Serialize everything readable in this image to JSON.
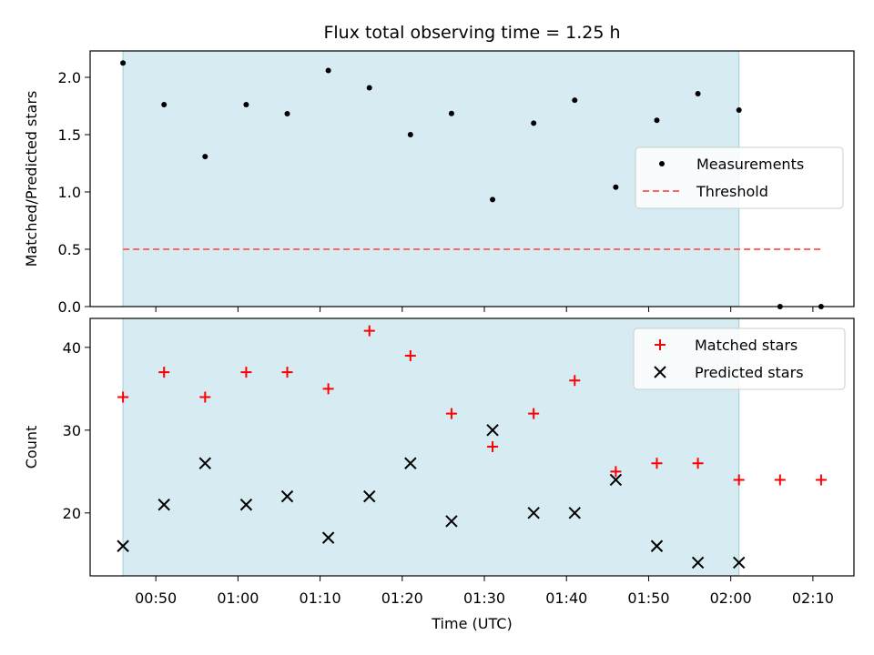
{
  "chart_data": [
    {
      "type": "scatter",
      "title": "Flux total observing time = 1.25 h",
      "xlabel": "",
      "ylabel": "Matched/Predicted stars",
      "ylim": [
        0,
        2.23
      ],
      "yticks": [
        "0.0",
        "0.5",
        "1.0",
        "1.5",
        "2.0"
      ],
      "xlim": [
        "00:42",
        "02:15"
      ],
      "shaded_span": [
        "00:46",
        "02:01"
      ],
      "shaded_color": "#add8e6",
      "grid": false,
      "legend_position": "center-right",
      "series": [
        {
          "name": "Measurements",
          "marker": "dot",
          "color": "#000000",
          "x": [
            "00:46",
            "00:51",
            "00:56",
            "01:01",
            "01:06",
            "01:11",
            "01:16",
            "01:21",
            "01:26",
            "01:31",
            "01:36",
            "01:41",
            "01:46",
            "01:51",
            "01:56",
            "02:01",
            "02:06",
            "02:11"
          ],
          "y": [
            2.125,
            1.762,
            1.308,
            1.762,
            1.682,
            2.059,
            1.909,
            1.5,
            1.684,
            0.933,
            1.6,
            1.8,
            1.042,
            1.625,
            1.857,
            1.714,
            0.0,
            0.0
          ]
        },
        {
          "name": "Threshold",
          "style": "dashed",
          "color": "#ff6666",
          "x": [
            "00:46",
            "02:11"
          ],
          "y": [
            0.5,
            0.5
          ]
        }
      ]
    },
    {
      "type": "scatter",
      "title": "",
      "xlabel": "Time (UTC)",
      "ylabel": "Count",
      "ylim": [
        12.4,
        43.5
      ],
      "yticks": [
        "20",
        "30",
        "40"
      ],
      "xlim": [
        "00:42",
        "02:15"
      ],
      "xticks": [
        "00:50",
        "01:00",
        "01:10",
        "01:20",
        "01:30",
        "01:40",
        "01:50",
        "02:00",
        "02:10"
      ],
      "shaded_span": [
        "00:46",
        "02:01"
      ],
      "shaded_color": "#add8e6",
      "grid": false,
      "legend_position": "top-right",
      "series": [
        {
          "name": "Matched stars",
          "marker": "plus",
          "color": "#ff0000",
          "x": [
            "00:46",
            "00:51",
            "00:56",
            "01:01",
            "01:06",
            "01:11",
            "01:16",
            "01:21",
            "01:26",
            "01:31",
            "01:36",
            "01:41",
            "01:46",
            "01:51",
            "01:56",
            "02:01",
            "02:06",
            "02:11"
          ],
          "y": [
            34,
            37,
            34,
            37,
            37,
            35,
            42,
            39,
            32,
            28,
            32,
            36,
            25,
            26,
            26,
            24,
            24,
            24
          ]
        },
        {
          "name": "Predicted stars",
          "marker": "x",
          "color": "#000000",
          "x": [
            "00:46",
            "00:51",
            "00:56",
            "01:01",
            "01:06",
            "01:11",
            "01:16",
            "01:21",
            "01:26",
            "01:31",
            "01:36",
            "01:41",
            "01:46",
            "01:51",
            "01:56",
            "02:01"
          ],
          "y": [
            16,
            21,
            26,
            21,
            22,
            17,
            22,
            26,
            19,
            30,
            20,
            20,
            24,
            16,
            14,
            14
          ]
        }
      ]
    }
  ]
}
